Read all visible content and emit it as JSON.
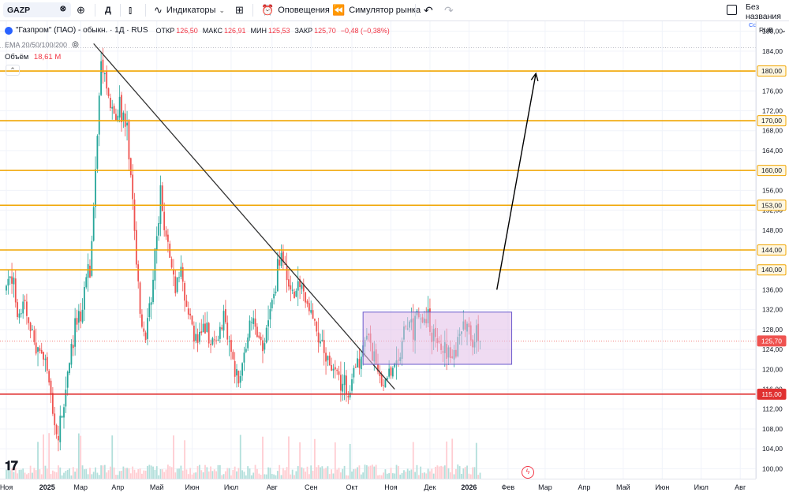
{
  "toolbar": {
    "symbol": "GAZP",
    "interval": "Д",
    "indicators_label": "Индикаторы",
    "alerts_label": "Оповещения",
    "replay_label": "Симулятор рынка",
    "layout_name": "Без названия",
    "layout_status": "Сохранить"
  },
  "legend": {
    "name": "\"Газпром\" (ПАО) - обыкн. · 1Д · RUS",
    "open_label": "ОТКР",
    "open": "126,50",
    "high_label": "МАКС",
    "high": "126,91",
    "low_label": "МИН",
    "low": "125,53",
    "close_label": "ЗАКР",
    "close": "125,70",
    "change": "−0,48 (−0,38%)",
    "ema": "EMA 20/50/100/200",
    "volume_label": "Объём",
    "volume": "18,61 M"
  },
  "currency": "RUB",
  "colors": {
    "up": "#26a69a",
    "down": "#ef5350",
    "level": "#f0a500",
    "support": "#e03030",
    "range_fill": "#e1bee7",
    "range_border": "#6a5acd",
    "trend_line": "#333333"
  },
  "chart_data": {
    "type": "candlestick",
    "symbol": "GAZP",
    "timeframe": "1D",
    "y_axis": {
      "min": 98,
      "max": 190,
      "ticks": [
        "100,00",
        "104,00",
        "108,00",
        "112,00",
        "116,00",
        "120,00",
        "124,00",
        "128,00",
        "132,00",
        "136,00",
        "140,00",
        "144,00",
        "148,00",
        "152,00",
        "156,00",
        "160,00",
        "164,00",
        "168,00",
        "172,00",
        "176,00",
        "180,00",
        "184,00",
        "188,00"
      ]
    },
    "x_axis": {
      "labels": [
        {
          "text": "Ноя",
          "idx": 0
        },
        {
          "text": "2025",
          "idx": 22
        },
        {
          "text": "Мар",
          "idx": 40
        },
        {
          "text": "Апр",
          "idx": 60
        },
        {
          "text": "Май",
          "idx": 81
        },
        {
          "text": "Июн",
          "idx": 100
        },
        {
          "text": "Июл",
          "idx": 121
        },
        {
          "text": "Авг",
          "idx": 143
        },
        {
          "text": "Сен",
          "idx": 164
        },
        {
          "text": "Окт",
          "idx": 186
        },
        {
          "text": "Ноя",
          "idx": 207
        },
        {
          "text": "Дек",
          "idx": 228
        },
        {
          "text": "2026",
          "idx": 249
        },
        {
          "text": "Фев",
          "idx": 270
        },
        {
          "text": "Мар",
          "idx": 290
        },
        {
          "text": "Апр",
          "idx": 311
        },
        {
          "text": "Май",
          "idx": 332
        },
        {
          "text": "Июн",
          "idx": 353
        },
        {
          "text": "Июл",
          "idx": 374
        },
        {
          "text": "Авг",
          "idx": 395
        }
      ]
    },
    "close_path": [
      [
        0,
        136
      ],
      [
        3,
        139
      ],
      [
        6,
        131
      ],
      [
        10,
        133
      ],
      [
        14,
        126
      ],
      [
        18,
        123
      ],
      [
        22,
        120
      ],
      [
        25,
        110
      ],
      [
        28,
        106
      ],
      [
        31,
        114
      ],
      [
        34,
        121
      ],
      [
        37,
        128
      ],
      [
        40,
        131
      ],
      [
        43,
        138
      ],
      [
        45,
        141
      ],
      [
        47,
        152
      ],
      [
        49,
        168
      ],
      [
        51,
        181
      ],
      [
        53,
        179
      ],
      [
        55,
        175
      ],
      [
        57,
        172
      ],
      [
        59,
        170
      ],
      [
        61,
        173
      ],
      [
        63,
        171
      ],
      [
        65,
        168
      ],
      [
        67,
        158
      ],
      [
        69,
        148
      ],
      [
        71,
        136
      ],
      [
        73,
        129
      ],
      [
        75,
        127
      ],
      [
        77,
        133
      ],
      [
        79,
        139
      ],
      [
        81,
        146
      ],
      [
        83,
        155
      ],
      [
        85,
        150
      ],
      [
        87,
        144
      ],
      [
        89,
        140
      ],
      [
        91,
        136
      ],
      [
        93,
        139
      ],
      [
        95,
        137
      ],
      [
        97,
        134
      ],
      [
        99,
        130
      ],
      [
        101,
        127
      ],
      [
        103,
        125
      ],
      [
        105,
        127
      ],
      [
        107,
        129
      ],
      [
        109,
        127
      ],
      [
        111,
        126
      ],
      [
        113,
        125
      ],
      [
        115,
        128
      ],
      [
        117,
        130
      ],
      [
        119,
        127
      ],
      [
        121,
        124
      ],
      [
        123,
        120
      ],
      [
        125,
        118
      ],
      [
        127,
        121
      ],
      [
        129,
        125
      ],
      [
        131,
        128
      ],
      [
        133,
        130
      ],
      [
        135,
        127
      ],
      [
        137,
        125
      ],
      [
        139,
        126
      ],
      [
        141,
        129
      ],
      [
        143,
        133
      ],
      [
        145,
        138
      ],
      [
        147,
        143
      ],
      [
        149,
        142
      ],
      [
        151,
        138
      ],
      [
        153,
        135
      ],
      [
        155,
        134
      ],
      [
        157,
        136
      ],
      [
        159,
        137
      ],
      [
        161,
        134
      ],
      [
        163,
        132
      ],
      [
        165,
        130
      ],
      [
        167,
        128
      ],
      [
        169,
        126
      ],
      [
        171,
        124
      ],
      [
        173,
        122
      ],
      [
        175,
        121
      ],
      [
        177,
        120
      ],
      [
        179,
        118
      ],
      [
        181,
        117
      ],
      [
        183,
        116
      ],
      [
        185,
        116
      ],
      [
        187,
        118
      ],
      [
        189,
        121
      ],
      [
        191,
        124
      ],
      [
        193,
        127
      ],
      [
        195,
        126
      ],
      [
        197,
        123
      ],
      [
        199,
        120
      ],
      [
        201,
        118
      ],
      [
        203,
        117
      ],
      [
        205,
        118
      ],
      [
        207,
        119
      ],
      [
        209,
        120
      ],
      [
        211,
        121
      ],
      [
        213,
        125
      ],
      [
        215,
        128
      ],
      [
        217,
        129
      ],
      [
        219,
        128
      ],
      [
        221,
        130
      ],
      [
        223,
        131
      ],
      [
        225,
        129
      ],
      [
        227,
        130
      ],
      [
        229,
        127
      ],
      [
        231,
        128
      ],
      [
        233,
        124
      ],
      [
        235,
        125
      ],
      [
        237,
        124
      ],
      [
        239,
        121
      ],
      [
        241,
        124
      ],
      [
        243,
        126
      ],
      [
        245,
        128
      ],
      [
        247,
        127
      ],
      [
        249,
        128
      ],
      [
        251,
        126
      ],
      [
        253,
        127
      ],
      [
        255,
        125.7
      ]
    ],
    "current_price": 125.7,
    "resistance_levels": [
      180,
      170,
      160,
      153,
      144,
      140
    ],
    "support_level": 115,
    "price_labels": [
      "180,00",
      "170,00",
      "160,00",
      "153,00",
      "144,00",
      "140,00",
      "125,70",
      "115,00"
    ],
    "trend_line": {
      "from": {
        "idx": 47,
        "price": 185.5
      },
      "to": {
        "idx": 209,
        "price": 116
      }
    },
    "range_box": {
      "from_idx": 192,
      "to_idx": 272,
      "top": 131.5,
      "bottom": 121
    },
    "projection_arrow": {
      "from": {
        "idx": 264,
        "price": 136
      },
      "to": {
        "idx": 285,
        "price": 179.5
      }
    },
    "total_bars": 400
  }
}
